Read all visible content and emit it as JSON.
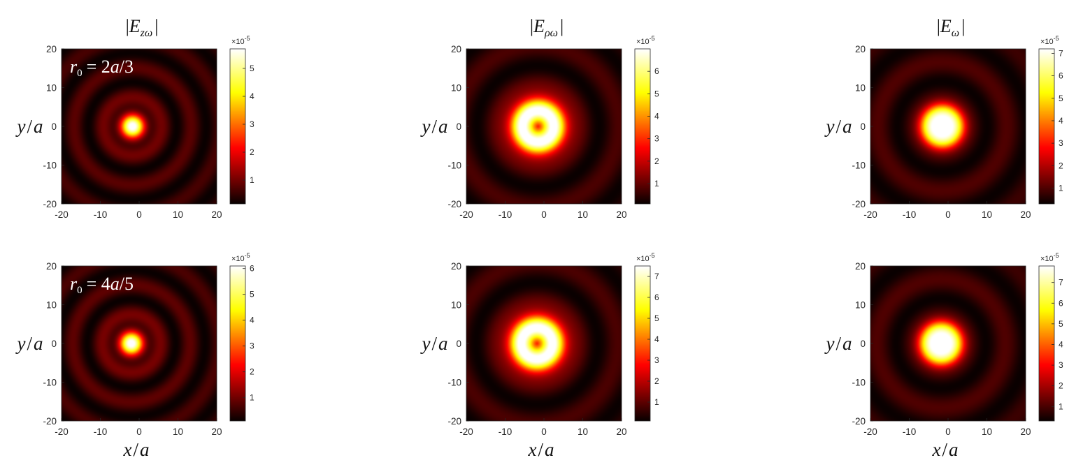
{
  "chart_data": [
    {
      "type": "heatmap",
      "row": 0,
      "col": 0,
      "title": "|E_zω|",
      "annotation": "r0 = 2a/3",
      "ylabel": "y/a",
      "xlabel": "",
      "xlim": [
        -20,
        20
      ],
      "ylim": [
        -20,
        20
      ],
      "xticks": [
        "-20",
        "-10",
        "0",
        "10",
        "20"
      ],
      "yticks": [
        "20",
        "10",
        "0",
        "-10",
        "-20"
      ],
      "colorbar": {
        "exponent": "×10",
        "power": "-5",
        "ticks": [
          "1",
          "2",
          "3",
          "4",
          "5"
        ],
        "min": 0.15,
        "max": 5.7
      },
      "pattern": {
        "kind": "spot",
        "center": [
          -1.7,
          0
        ],
        "spot_sigma": 2.1,
        "ring_period": 7.6,
        "ring_offset": 0.5,
        "ring_amp": 0.18,
        "decay": 30
      }
    },
    {
      "type": "heatmap",
      "row": 0,
      "col": 1,
      "title": "|E_ρω|",
      "annotation": "",
      "ylabel": "y/a",
      "xlabel": "",
      "xlim": [
        -20,
        20
      ],
      "ylim": [
        -20,
        20
      ],
      "xticks": [
        "-20",
        "-10",
        "0",
        "10",
        "20"
      ],
      "yticks": [
        "20",
        "10",
        "0",
        "-10",
        "-20"
      ],
      "colorbar": {
        "exponent": "×10",
        "power": "-5",
        "ticks": [
          "1",
          "2",
          "3",
          "4",
          "5",
          "6"
        ],
        "min": 0.1,
        "max": 7.0
      },
      "pattern": {
        "kind": "donut",
        "center": [
          -1.5,
          0
        ],
        "ring_radius": 4.0,
        "ring_width": 2.4,
        "ring_period": 10.5,
        "ring_offset": 0.5,
        "ring_amp": 0.17,
        "decay": 32
      }
    },
    {
      "type": "heatmap",
      "row": 0,
      "col": 2,
      "title": "|E_ω|",
      "annotation": "",
      "ylabel": "y/a",
      "xlabel": "",
      "xlim": [
        -20,
        20
      ],
      "ylim": [
        -20,
        20
      ],
      "xticks": [
        "-20",
        "-10",
        "0",
        "10",
        "20"
      ],
      "yticks": [
        "20",
        "10",
        "0",
        "-10",
        "-20"
      ],
      "colorbar": {
        "exponent": "×10",
        "power": "-5",
        "ticks": [
          "1",
          "2",
          "3",
          "4",
          "5",
          "6",
          "7"
        ],
        "min": 0.3,
        "max": 7.2
      },
      "pattern": {
        "kind": "disk",
        "center": [
          -1.5,
          0
        ],
        "disk_radius": 5.5,
        "ring_period": 10.5,
        "ring_offset": 0.9,
        "ring_amp": 0.16,
        "decay": 32
      }
    },
    {
      "type": "heatmap",
      "row": 1,
      "col": 0,
      "title": "",
      "annotation": "r0 = 4a/5",
      "ylabel": "y/a",
      "xlabel": "x/a",
      "xlim": [
        -20,
        20
      ],
      "ylim": [
        -20,
        20
      ],
      "xticks": [
        "-20",
        "-10",
        "0",
        "10",
        "20"
      ],
      "yticks": [
        "20",
        "10",
        "0",
        "-10",
        "-20"
      ],
      "colorbar": {
        "exponent": "×10",
        "power": "-5",
        "ticks": [
          "1",
          "2",
          "3",
          "4",
          "5",
          "6"
        ],
        "min": 0.1,
        "max": 6.1
      },
      "pattern": {
        "kind": "spot",
        "center": [
          -2.0,
          0
        ],
        "spot_sigma": 2.1,
        "ring_period": 7.6,
        "ring_offset": 0.5,
        "ring_amp": 0.19,
        "decay": 30
      }
    },
    {
      "type": "heatmap",
      "row": 1,
      "col": 1,
      "title": "",
      "annotation": "",
      "ylabel": "y/a",
      "xlabel": "x/a",
      "xlim": [
        -20,
        20
      ],
      "ylim": [
        -20,
        20
      ],
      "xticks": [
        "-20",
        "-10",
        "0",
        "10",
        "20"
      ],
      "yticks": [
        "20",
        "10",
        "0",
        "-10",
        "-20"
      ],
      "colorbar": {
        "exponent": "×10",
        "power": "-5",
        "ticks": [
          "1",
          "2",
          "3",
          "4",
          "5",
          "6",
          "7"
        ],
        "min": 0.1,
        "max": 7.5
      },
      "pattern": {
        "kind": "donut",
        "center": [
          -1.8,
          0
        ],
        "ring_radius": 4.0,
        "ring_width": 2.4,
        "ring_period": 10.5,
        "ring_offset": 0.5,
        "ring_amp": 0.17,
        "decay": 32
      }
    },
    {
      "type": "heatmap",
      "row": 1,
      "col": 2,
      "title": "",
      "annotation": "",
      "ylabel": "y/a",
      "xlabel": "x/a",
      "xlim": [
        -20,
        20
      ],
      "ylim": [
        -20,
        20
      ],
      "xticks": [
        "-20",
        "-10",
        "0",
        "10",
        "20"
      ],
      "yticks": [
        "20",
        "10",
        "0",
        "-10",
        "-20"
      ],
      "colorbar": {
        "exponent": "×10",
        "power": "-5",
        "ticks": [
          "1",
          "2",
          "3",
          "4",
          "5",
          "6",
          "7"
        ],
        "min": 0.3,
        "max": 7.8
      },
      "pattern": {
        "kind": "disk",
        "center": [
          -1.8,
          0
        ],
        "disk_radius": 5.5,
        "ring_period": 10.5,
        "ring_offset": 0.9,
        "ring_amp": 0.16,
        "decay": 32
      }
    }
  ],
  "colormap": "hot",
  "colors": {
    "axis": "#262626",
    "text": "#111111",
    "colormap_stops": [
      "#0a0000",
      "#ff0000",
      "#ffff00",
      "#ffffff"
    ]
  }
}
